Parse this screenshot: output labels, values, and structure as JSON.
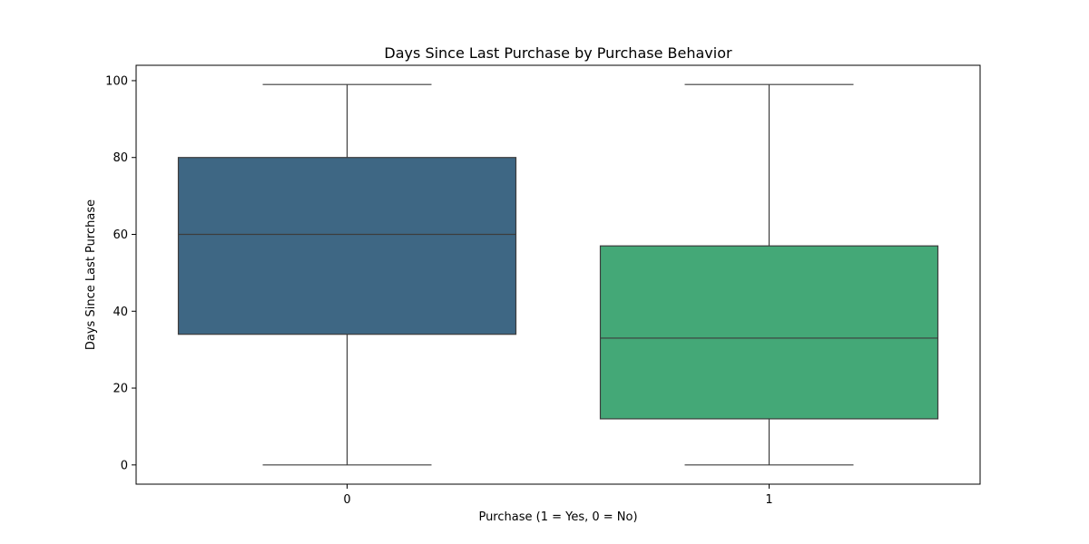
{
  "chart_data": {
    "type": "box",
    "title": "Days Since Last Purchase by Purchase Behavior",
    "xlabel": "Purchase (1 = Yes, 0 = No)",
    "ylabel": "Days Since Last Purchase",
    "categories": [
      "0",
      "1"
    ],
    "boxes": [
      {
        "category": "0",
        "whisker_low": 0,
        "q1": 34,
        "median": 60,
        "q3": 80,
        "whisker_high": 99,
        "color": "#3e6784"
      },
      {
        "category": "1",
        "whisker_low": 0,
        "q1": 12,
        "median": 33,
        "q3": 57,
        "whisker_high": 99,
        "color": "#44a877"
      }
    ],
    "y_ticks": [
      0,
      20,
      40,
      60,
      80,
      100
    ],
    "ylim": [
      -5,
      104
    ],
    "grid": false,
    "legend": "none"
  }
}
